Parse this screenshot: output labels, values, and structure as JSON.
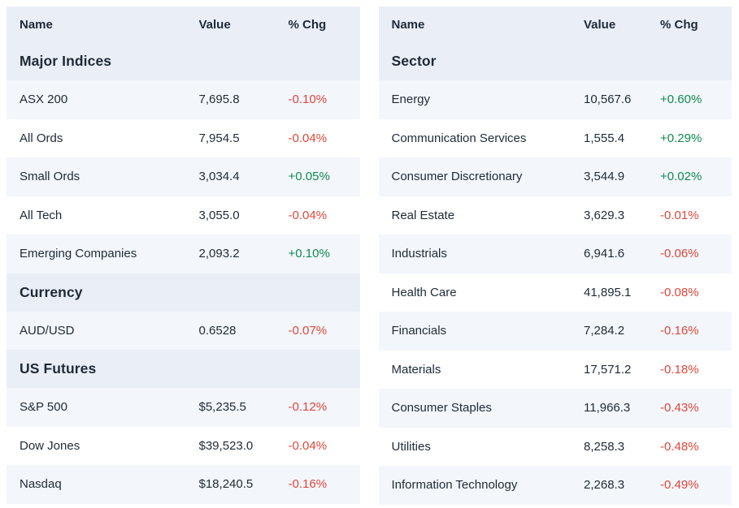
{
  "colors": {
    "text": "#1f2a37",
    "header_bg": "#e9eef7",
    "stripe_bg": "#f3f6fb",
    "positive": "#0f8a4d",
    "negative": "#e0473a"
  },
  "columns": [
    "Name",
    "Value",
    "% Chg"
  ],
  "tables": [
    {
      "name": "markets",
      "sections": [
        {
          "title": "Major Indices",
          "rows": [
            {
              "name": "ASX 200",
              "value": "7,695.8",
              "chg": "-0.10%"
            },
            {
              "name": "All Ords",
              "value": "7,954.5",
              "chg": "-0.04%"
            },
            {
              "name": "Small Ords",
              "value": "3,034.4",
              "chg": "+0.05%"
            },
            {
              "name": "All Tech",
              "value": "3,055.0",
              "chg": "-0.04%"
            },
            {
              "name": "Emerging Companies",
              "value": "2,093.2",
              "chg": "+0.10%"
            }
          ]
        },
        {
          "title": "Currency",
          "rows": [
            {
              "name": "AUD/USD",
              "value": "0.6528",
              "chg": "-0.07%"
            }
          ]
        },
        {
          "title": "US Futures",
          "rows": [
            {
              "name": "S&P 500",
              "value": "$5,235.5",
              "chg": "-0.12%"
            },
            {
              "name": "Dow Jones",
              "value": "$39,523.0",
              "chg": "-0.04%"
            },
            {
              "name": "Nasdaq",
              "value": "$18,240.5",
              "chg": "-0.16%"
            }
          ]
        }
      ]
    },
    {
      "name": "sectors",
      "sections": [
        {
          "title": "Sector",
          "rows": [
            {
              "name": "Energy",
              "value": "10,567.6",
              "chg": "+0.60%"
            },
            {
              "name": "Communication Services",
              "value": "1,555.4",
              "chg": "+0.29%"
            },
            {
              "name": "Consumer Discretionary",
              "value": "3,544.9",
              "chg": "+0.02%"
            },
            {
              "name": "Real Estate",
              "value": "3,629.3",
              "chg": "-0.01%"
            },
            {
              "name": "Industrials",
              "value": "6,941.6",
              "chg": "-0.06%"
            },
            {
              "name": "Health Care",
              "value": "41,895.1",
              "chg": "-0.08%"
            },
            {
              "name": "Financials",
              "value": "7,284.2",
              "chg": "-0.16%"
            },
            {
              "name": "Materials",
              "value": "17,571.2",
              "chg": "-0.18%"
            },
            {
              "name": "Consumer Staples",
              "value": "11,966.3",
              "chg": "-0.43%"
            },
            {
              "name": "Utilities",
              "value": "8,258.3",
              "chg": "-0.48%"
            },
            {
              "name": "Information Technology",
              "value": "2,268.3",
              "chg": "-0.49%"
            }
          ]
        }
      ]
    }
  ]
}
